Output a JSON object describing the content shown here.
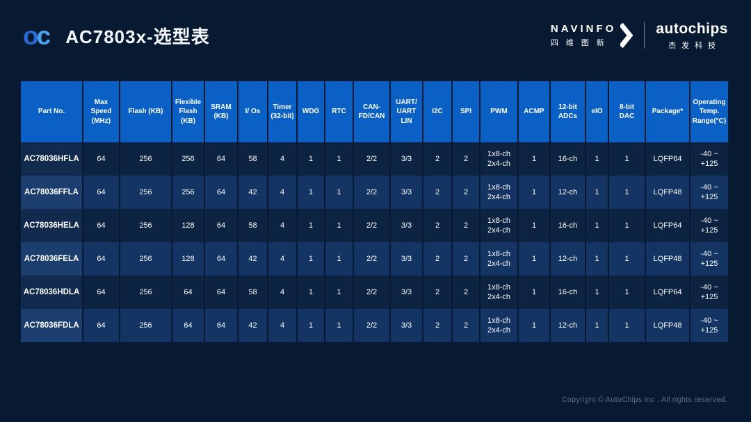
{
  "header": {
    "logo": {
      "part1": "o",
      "part2": "c"
    },
    "title": "AC7803x-选型表",
    "navinfo": {
      "wordmark": "NAVINFO",
      "cn": "四维图新"
    },
    "autochips": {
      "wordmark": "autochips",
      "cn": "杰发科技"
    }
  },
  "table": {
    "columns": [
      "Part No.",
      "Max\nSpeed\n(MHz)",
      "Flash (KB)",
      "Flexible\nFlash\n(KB)",
      "SRAM\n(KB)",
      "I/ Os",
      "Timer\n(32-bit)",
      "WDG",
      "RTC",
      "CAN-\nFD/CAN",
      "UART/\nUART\nLIN",
      "I2C",
      "SPI",
      "PWM",
      "ACMP",
      "12-bit\nADCs",
      "eIO",
      "8-bit\nDAC",
      "Package*",
      "Operating\nTemp.\nRange(°C)"
    ],
    "rows": [
      [
        "AC78036HFLA",
        "64",
        "256",
        "256",
        "64",
        "58",
        "4",
        "1",
        "1",
        "2/2",
        "3/3",
        "2",
        "2",
        "1x8-ch\n2x4-ch",
        "1",
        "16-ch",
        "1",
        "1",
        "LQFP64",
        "-40 ~ +125"
      ],
      [
        "AC78036FFLA",
        "64",
        "256",
        "256",
        "64",
        "42",
        "4",
        "1",
        "1",
        "2/2",
        "3/3",
        "2",
        "2",
        "1x8-ch\n2x4-ch",
        "1",
        "12-ch",
        "1",
        "1",
        "LQFP48",
        "-40 ~ +125"
      ],
      [
        "AC78036HELA",
        "64",
        "256",
        "128",
        "64",
        "58",
        "4",
        "1",
        "1",
        "2/2",
        "3/3",
        "2",
        "2",
        "1x8-ch\n2x4-ch",
        "1",
        "16-ch",
        "1",
        "1",
        "LQFP64",
        "-40 ~ +125"
      ],
      [
        "AC78036FELA",
        "64",
        "256",
        "128",
        "64",
        "42",
        "4",
        "1",
        "1",
        "2/2",
        "3/3",
        "2",
        "2",
        "1x8-ch\n2x4-ch",
        "1",
        "12-ch",
        "1",
        "1",
        "LQFP48",
        "-40 ~ +125"
      ],
      [
        "AC78036HDLA",
        "64",
        "256",
        "64",
        "64",
        "58",
        "4",
        "1",
        "1",
        "2/2",
        "3/3",
        "2",
        "2",
        "1x8-ch\n2x4-ch",
        "1",
        "16-ch",
        "1",
        "1",
        "LQFP64",
        "-40 ~ +125"
      ],
      [
        "AC78036FDLA",
        "64",
        "256",
        "64",
        "64",
        "42",
        "4",
        "1",
        "1",
        "2/2",
        "3/3",
        "2",
        "2",
        "1x8-ch\n2x4-ch",
        "1",
        "12-ch",
        "1",
        "1",
        "LQFP48",
        "-40 ~ +125"
      ]
    ]
  },
  "footer": {
    "copyright": "Copyright © AutoChips Inc . All rights reserved."
  },
  "colors": {
    "background": "#081a31",
    "header_blue": "#0a60c4",
    "row_odd": "#0d2342",
    "row_even": "#143564",
    "copyright_text": "#5c6c82",
    "logo_blue_dark": "#2a6ad6",
    "logo_blue_light": "#4ba1f2"
  }
}
